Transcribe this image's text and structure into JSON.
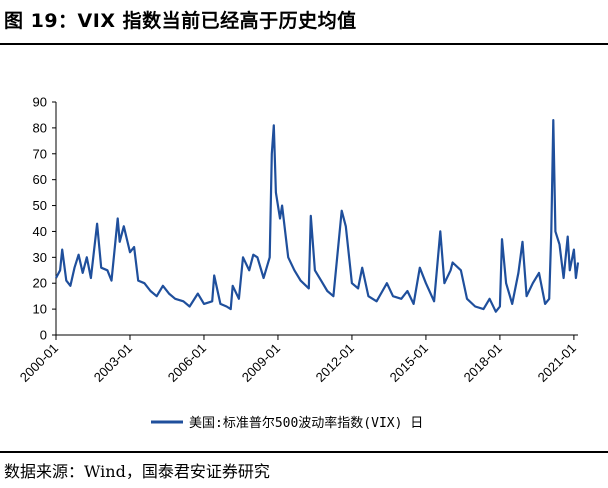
{
  "header": {
    "title": "图 19：VIX 指数当前已经高于历史均值"
  },
  "footer": {
    "source": "数据来源：Wind，国泰君安证券研究"
  },
  "colors": {
    "series": "#1f4f9c",
    "axis": "#000000"
  },
  "chart_data": {
    "type": "line",
    "title": "",
    "xlabel": "",
    "ylabel": "",
    "ylim": [
      0,
      90
    ],
    "yticks": [
      0,
      10,
      20,
      30,
      40,
      50,
      60,
      70,
      80,
      90
    ],
    "xticks": [
      "2000-01",
      "2003-01",
      "2006-01",
      "2009-01",
      "2012-01",
      "2015-01",
      "2018-01",
      "2021-01"
    ],
    "xlim": [
      "2000-01",
      "2021-03"
    ],
    "grid": false,
    "legend_position": "bottom",
    "series": [
      {
        "name": "美国:标准普尔500波动率指数(VIX) 日",
        "color": "#1f4f9c",
        "points": [
          [
            "2000-01",
            22
          ],
          [
            "2000-03",
            25
          ],
          [
            "2000-04",
            33
          ],
          [
            "2000-06",
            21
          ],
          [
            "2000-08",
            19
          ],
          [
            "2000-10",
            26
          ],
          [
            "2000-12",
            31
          ],
          [
            "2001-02",
            24
          ],
          [
            "2001-04",
            30
          ],
          [
            "2001-06",
            22
          ],
          [
            "2001-09",
            43
          ],
          [
            "2001-11",
            26
          ],
          [
            "2002-02",
            25
          ],
          [
            "2002-04",
            21
          ],
          [
            "2002-07",
            45
          ],
          [
            "2002-08",
            36
          ],
          [
            "2002-10",
            42
          ],
          [
            "2003-01",
            32
          ],
          [
            "2003-03",
            34
          ],
          [
            "2003-05",
            21
          ],
          [
            "2003-08",
            20
          ],
          [
            "2003-11",
            17
          ],
          [
            "2004-02",
            15
          ],
          [
            "2004-05",
            19
          ],
          [
            "2004-08",
            16
          ],
          [
            "2004-11",
            14
          ],
          [
            "2005-03",
            13
          ],
          [
            "2005-06",
            11
          ],
          [
            "2005-10",
            16
          ],
          [
            "2006-01",
            12
          ],
          [
            "2006-05",
            13
          ],
          [
            "2006-06",
            23
          ],
          [
            "2006-09",
            12
          ],
          [
            "2006-12",
            11
          ],
          [
            "2007-02",
            10
          ],
          [
            "2007-03",
            19
          ],
          [
            "2007-06",
            14
          ],
          [
            "2007-08",
            30
          ],
          [
            "2007-11",
            25
          ],
          [
            "2008-01",
            31
          ],
          [
            "2008-03",
            30
          ],
          [
            "2008-06",
            22
          ],
          [
            "2008-09",
            30
          ],
          [
            "2008-10",
            70
          ],
          [
            "2008-11",
            81
          ],
          [
            "2008-12",
            55
          ],
          [
            "2009-02",
            45
          ],
          [
            "2009-03",
            50
          ],
          [
            "2009-06",
            30
          ],
          [
            "2009-09",
            25
          ],
          [
            "2009-12",
            21
          ],
          [
            "2010-04",
            18
          ],
          [
            "2010-05",
            46
          ],
          [
            "2010-07",
            25
          ],
          [
            "2010-10",
            21
          ],
          [
            "2011-01",
            17
          ],
          [
            "2011-04",
            15
          ],
          [
            "2011-08",
            48
          ],
          [
            "2011-10",
            42
          ],
          [
            "2012-01",
            20
          ],
          [
            "2012-04",
            18
          ],
          [
            "2012-06",
            26
          ],
          [
            "2012-09",
            15
          ],
          [
            "2013-01",
            13
          ],
          [
            "2013-06",
            20
          ],
          [
            "2013-09",
            15
          ],
          [
            "2014-01",
            14
          ],
          [
            "2014-04",
            17
          ],
          [
            "2014-07",
            12
          ],
          [
            "2014-10",
            26
          ],
          [
            "2015-01",
            20
          ],
          [
            "2015-05",
            13
          ],
          [
            "2015-08",
            40
          ],
          [
            "2015-10",
            20
          ],
          [
            "2016-01",
            25
          ],
          [
            "2016-02",
            28
          ],
          [
            "2016-06",
            25
          ],
          [
            "2016-09",
            14
          ],
          [
            "2017-01",
            11
          ],
          [
            "2017-05",
            10
          ],
          [
            "2017-08",
            14
          ],
          [
            "2017-11",
            9
          ],
          [
            "2018-01",
            11
          ],
          [
            "2018-02",
            37
          ],
          [
            "2018-04",
            20
          ],
          [
            "2018-07",
            12
          ],
          [
            "2018-10",
            24
          ],
          [
            "2018-12",
            36
          ],
          [
            "2019-02",
            15
          ],
          [
            "2019-05",
            20
          ],
          [
            "2019-08",
            24
          ],
          [
            "2019-11",
            12
          ],
          [
            "2020-01",
            14
          ],
          [
            "2020-02",
            40
          ],
          [
            "2020-03",
            83
          ],
          [
            "2020-04",
            40
          ],
          [
            "2020-06",
            35
          ],
          [
            "2020-08",
            22
          ],
          [
            "2020-10",
            38
          ],
          [
            "2020-11",
            25
          ],
          [
            "2021-01",
            33
          ],
          [
            "2021-02",
            22
          ],
          [
            "2021-03",
            28
          ]
        ]
      }
    ]
  }
}
